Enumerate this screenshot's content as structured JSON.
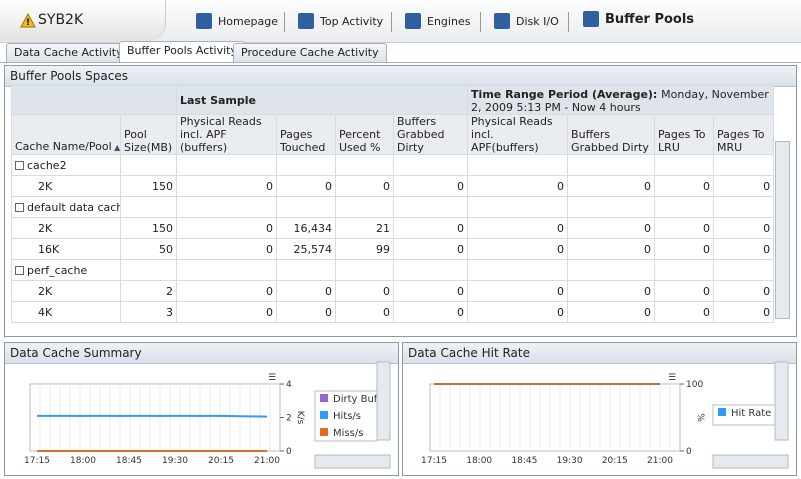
{
  "header": {
    "title": "SYB2K",
    "nav": [
      "Homepage",
      "Top Activity",
      "Engines",
      "Disk I/O",
      "Buffer Pools"
    ]
  },
  "tabs": [
    "Data Cache Activity",
    "Buffer Pools Activity",
    "Procedure Cache Activity"
  ],
  "table": {
    "title": "Buffer Pools Spaces",
    "last_sample": "Last Sample",
    "time_range": "Time Range Period (Average):",
    "time_range_detail": "Monday, November 2, 2009  5:13 PM - Now  4 hours",
    "columns": [
      "Cache Name/Pool",
      "Pool Size(MB)",
      "Physical Reads incl. APF (buffers)",
      "Pages Touched",
      "Percent Used %",
      "Buffers Grabbed Dirty",
      "Physical Reads incl. APF(buffers)",
      "Buffers Grabbed Dirty",
      "Pages To LRU",
      "Pages To MRU"
    ],
    "rows": [
      {
        "group": "cache2"
      },
      {
        "pool": "2K",
        "values": [
          "150",
          "0",
          "0",
          "0",
          "0",
          "0",
          "0",
          "0",
          "0"
        ]
      },
      {
        "group": "default data cache"
      },
      {
        "pool": "2K",
        "values": [
          "150",
          "0",
          "16,434",
          "21",
          "0",
          "0",
          "0",
          "0",
          "0"
        ]
      },
      {
        "pool": "16K",
        "values": [
          "50",
          "0",
          "25,574",
          "99",
          "0",
          "0",
          "0",
          "0",
          "0"
        ]
      },
      {
        "group": "perf_cache"
      },
      {
        "pool": "2K",
        "values": [
          "2",
          "0",
          "0",
          "0",
          "0",
          "0",
          "0",
          "0",
          "0"
        ]
      },
      {
        "pool": "4K",
        "values": [
          "3",
          "0",
          "0",
          "0",
          "0",
          "0",
          "0",
          "0",
          "0"
        ]
      }
    ]
  },
  "charts": [
    {
      "type": "line",
      "title": "Data Cache Summary",
      "categories": [
        "17:15",
        "18:00",
        "18:45",
        "19:30",
        "20:15",
        "21:00"
      ],
      "ylim": [
        0,
        4
      ],
      "yticks": [
        0,
        2,
        4
      ],
      "ylabel": "K/s",
      "series": [
        {
          "name": "Dirty Buf",
          "color": "#9966cc",
          "values": [
            0,
            0,
            0,
            0,
            0,
            0
          ]
        },
        {
          "name": "Hits/s",
          "color": "#3399ff",
          "values": [
            2.1,
            2.1,
            2.1,
            2.1,
            2.1,
            2.05
          ]
        },
        {
          "name": "Miss/s",
          "color": "#e07020",
          "values": [
            0,
            0,
            0,
            0,
            0,
            0
          ]
        }
      ]
    },
    {
      "type": "line",
      "title": "Data Cache Hit Rate",
      "categories": [
        "17:15",
        "18:00",
        "18:45",
        "19:30",
        "20:15",
        "21:00"
      ],
      "ylim": [
        0,
        100
      ],
      "yticks": [
        0,
        100
      ],
      "ylabel": "%",
      "series": [
        {
          "name": "Hit Rate",
          "color": "#c8703a",
          "legend_color": "#3399ff",
          "values": [
            100,
            100,
            100,
            100,
            100,
            100
          ]
        }
      ]
    }
  ]
}
